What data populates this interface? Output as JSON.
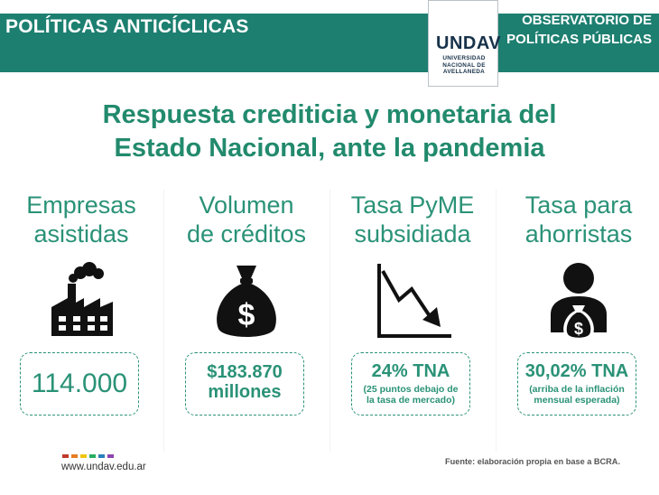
{
  "header": {
    "left_title": "POLÍTICAS ANTICÍCLICAS",
    "right_title_line1": "OBSERVATORIO DE",
    "right_title_line2": "POLÍTICAS PÚBLICAS",
    "logo_mark": "UNDAV",
    "logo_line1": "UNIVERSIDAD",
    "logo_line2": "NACIONAL DE",
    "logo_line3": "AVELLANEDA"
  },
  "title": {
    "line1": "Respuesta crediticia y monetaria del",
    "line2": "Estado Nacional, ante la pandemia"
  },
  "columns": [
    {
      "title_line1": "Empresas",
      "title_line2": "asistidas",
      "icon": "factory-icon",
      "value": "114.000",
      "value_line2": "",
      "note_line1": "",
      "note_line2": ""
    },
    {
      "title_line1": "Volumen",
      "title_line2": "de créditos",
      "icon": "money-bag-icon",
      "value": "$183.870",
      "value_line2": "millones",
      "note_line1": "",
      "note_line2": ""
    },
    {
      "title_line1": "Tasa PyME",
      "title_line2": "subsidiada",
      "icon": "trend-down-chart-icon",
      "value": "24% TNA",
      "value_line2": "",
      "note_line1": "(25 puntos debajo de",
      "note_line2": "la tasa de mercado)"
    },
    {
      "title_line1": "Tasa para",
      "title_line2": "ahorristas",
      "icon": "saver-person-icon",
      "value": "30,02% TNA",
      "value_line2": "",
      "note_line1": "(arriba de la inflación",
      "note_line2": "mensual esperada)"
    }
  ],
  "footer": {
    "website": "www.undav.edu.ar",
    "source": "Fuente: elaboración propia en base a BCRA.",
    "dot_colors": [
      "#c0392b",
      "#e67e22",
      "#f1c40f",
      "#27ae60",
      "#2980b9",
      "#8e44ad"
    ]
  },
  "colors": {
    "header_band": "#1d7f70",
    "accent_green": "#2a9277",
    "icon_black": "#111111"
  }
}
